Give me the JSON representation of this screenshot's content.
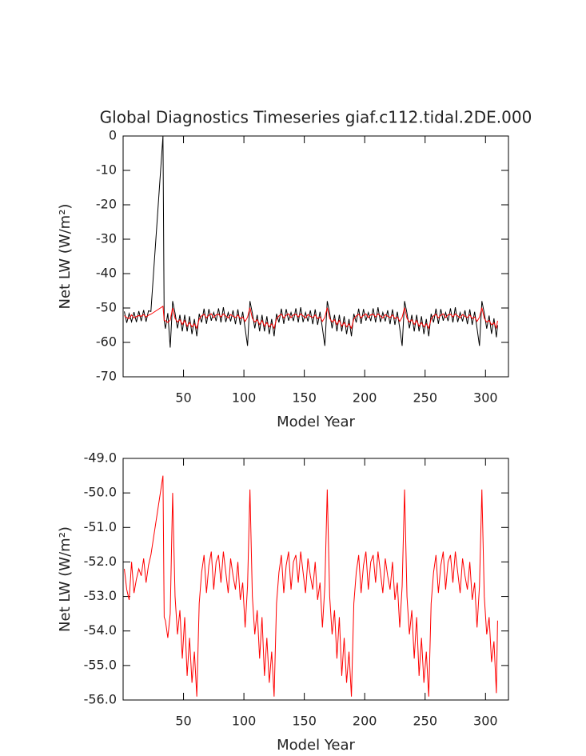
{
  "chart_data": [
    {
      "type": "line",
      "title": "Global Diagnostics Timeseries giaf.c112.tidal.2DE.000",
      "x_label": "Model Year",
      "y_label": "Net LW (W/m²)",
      "xlim": [
        0,
        319
      ],
      "xticks": [
        50,
        100,
        150,
        200,
        250,
        300
      ],
      "ylim": [
        -70,
        0
      ],
      "yticks": [
        -70,
        -60,
        -50,
        -40,
        -30,
        -20,
        -10,
        0
      ],
      "x": [
        1,
        3,
        5,
        7,
        9,
        11,
        13,
        15,
        17,
        19,
        21,
        23,
        33,
        34,
        35,
        37,
        39,
        41,
        43,
        45,
        47,
        49,
        51,
        53,
        55,
        57,
        59,
        61,
        63,
        65,
        67,
        69,
        71,
        73,
        75,
        77,
        79,
        81,
        83,
        85,
        87,
        89,
        91,
        93,
        95,
        97,
        99,
        101,
        103,
        105,
        107,
        109,
        111,
        113,
        115,
        117,
        119,
        121,
        123,
        125,
        127,
        129,
        131,
        133,
        135,
        137,
        139,
        141,
        143,
        145,
        147,
        149,
        151,
        153,
        155,
        157,
        159,
        161,
        163,
        165,
        167,
        169,
        171,
        173,
        175,
        177,
        179,
        181,
        183,
        185,
        187,
        189,
        191,
        193,
        195,
        197,
        199,
        201,
        203,
        205,
        207,
        209,
        211,
        213,
        215,
        217,
        219,
        221,
        223,
        225,
        227,
        229,
        231,
        233,
        235,
        237,
        239,
        241,
        243,
        245,
        247,
        249,
        251,
        253,
        255,
        257,
        259,
        261,
        263,
        265,
        267,
        269,
        271,
        273,
        275,
        277,
        279,
        281,
        283,
        285,
        287,
        289,
        291,
        293,
        295,
        297,
        299,
        301,
        303,
        305,
        307,
        309,
        310
      ],
      "series": [
        {
          "color": "#000000",
          "values": [
            -51.0,
            -54.3,
            -51.6,
            -54.0,
            -51.2,
            -54.1,
            -50.9,
            -53.8,
            -50.6,
            -54.0,
            -50.8,
            -51.0,
            0,
            -53.6,
            -56.0,
            -51.5,
            -61.5,
            -48.0,
            -51.5,
            -55.9,
            -52.0,
            -56.8,
            -52.0,
            -56.8,
            -52.4,
            -57.6,
            -53.2,
            -58.2,
            -51.7,
            -54.2,
            -50.2,
            -54.6,
            -50.3,
            -53.7,
            -51.3,
            -53.8,
            -50.1,
            -54.2,
            -49.8,
            -54.1,
            -51.3,
            -53.9,
            -50.7,
            -54.7,
            -50.4,
            -54.9,
            -51.1,
            -55.9,
            -61.0,
            -48.0,
            -51.5,
            -55.9,
            -52.0,
            -56.8,
            -52.0,
            -56.8,
            -52.4,
            -57.6,
            -53.2,
            -58.2,
            -51.7,
            -54.2,
            -50.2,
            -54.6,
            -50.3,
            -53.7,
            -51.3,
            -53.8,
            -50.1,
            -54.2,
            -49.8,
            -54.1,
            -51.3,
            -53.9,
            -50.7,
            -54.7,
            -50.4,
            -54.9,
            -51.1,
            -55.9,
            -61.0,
            -48.0,
            -51.5,
            -55.9,
            -52.0,
            -56.8,
            -52.0,
            -56.8,
            -52.4,
            -57.6,
            -53.2,
            -58.2,
            -51.7,
            -54.2,
            -50.2,
            -54.6,
            -50.3,
            -53.7,
            -51.3,
            -53.8,
            -50.1,
            -54.2,
            -49.8,
            -54.1,
            -51.3,
            -53.9,
            -50.7,
            -54.7,
            -50.4,
            -54.9,
            -51.1,
            -55.9,
            -61.0,
            -48.0,
            -51.5,
            -55.9,
            -52.0,
            -56.8,
            -52.0,
            -56.8,
            -52.4,
            -57.6,
            -53.2,
            -58.2,
            -51.7,
            -54.2,
            -50.2,
            -54.6,
            -50.3,
            -53.7,
            -51.3,
            -53.8,
            -50.1,
            -54.2,
            -49.8,
            -54.1,
            -51.3,
            -53.9,
            -50.7,
            -54.7,
            -50.4,
            -54.9,
            -51.1,
            -55.9,
            -61.0,
            -48.0,
            -51.5,
            -56.0,
            -52.2,
            -57.5,
            -53.0,
            -58.5,
            -55.0
          ]
        },
        {
          "color": "#ff0000",
          "values": [
            -52.2,
            -52.8,
            -53.1,
            -52.0,
            -52.9,
            -52.5,
            -52.2,
            -52.4,
            -51.9,
            -52.6,
            -52.1,
            -51.8,
            -49.5,
            -53.6,
            -53.7,
            -54.2,
            -53.5,
            -50.0,
            -53.0,
            -54.1,
            -53.4,
            -54.8,
            -53.6,
            -55.3,
            -54.2,
            -55.5,
            -54.6,
            -55.9,
            -53.2,
            -52.3,
            -51.8,
            -52.9,
            -52.1,
            -51.7,
            -52.8,
            -52.0,
            -51.8,
            -52.6,
            -51.7,
            -52.3,
            -52.9,
            -51.9,
            -52.4,
            -52.8,
            -52.0,
            -53.1,
            -52.6,
            -53.9,
            -52.7,
            -49.9,
            -53.0,
            -54.1,
            -53.4,
            -54.8,
            -53.6,
            -55.3,
            -54.2,
            -55.5,
            -54.6,
            -55.9,
            -53.2,
            -52.3,
            -51.8,
            -52.9,
            -52.1,
            -51.7,
            -52.8,
            -52.0,
            -51.8,
            -52.6,
            -51.7,
            -52.3,
            -52.9,
            -51.9,
            -52.4,
            -52.8,
            -52.0,
            -53.1,
            -52.6,
            -53.9,
            -52.7,
            -49.9,
            -53.0,
            -54.1,
            -53.4,
            -54.8,
            -53.6,
            -55.3,
            -54.2,
            -55.5,
            -54.6,
            -55.9,
            -53.2,
            -52.3,
            -51.8,
            -52.9,
            -52.1,
            -51.7,
            -52.8,
            -52.0,
            -51.8,
            -52.6,
            -51.7,
            -52.3,
            -52.9,
            -51.9,
            -52.4,
            -52.8,
            -52.0,
            -53.1,
            -52.6,
            -53.9,
            -52.7,
            -49.9,
            -53.0,
            -54.1,
            -53.4,
            -54.8,
            -53.6,
            -55.3,
            -54.2,
            -55.5,
            -54.6,
            -55.9,
            -53.2,
            -52.3,
            -51.8,
            -52.9,
            -52.1,
            -51.7,
            -52.8,
            -52.0,
            -51.8,
            -52.6,
            -51.7,
            -52.3,
            -52.9,
            -51.9,
            -52.4,
            -52.8,
            -52.0,
            -53.1,
            -52.6,
            -53.9,
            -52.7,
            -49.9,
            -53.0,
            -54.1,
            -53.6,
            -54.9,
            -54.3,
            -55.8,
            -53.7
          ]
        }
      ]
    },
    {
      "type": "line",
      "x_label": "Model Year",
      "y_label": "Net LW (W/m²)",
      "xlim": [
        0,
        319
      ],
      "xticks": [
        50,
        100,
        150,
        200,
        250,
        300
      ],
      "ylim": [
        -56,
        -49
      ],
      "yticks": [
        {
          "value": -56,
          "label": "-56.0"
        },
        {
          "value": -55,
          "label": "-55.0"
        },
        {
          "value": -54,
          "label": "-54.0"
        },
        {
          "value": -53,
          "label": "-53.0"
        },
        {
          "value": -52,
          "label": "-52.0"
        },
        {
          "value": -51,
          "label": "-51.0"
        },
        {
          "value": -50,
          "label": "-50.0"
        },
        {
          "value": -49,
          "label": "-49.0"
        }
      ],
      "x": [
        1,
        3,
        5,
        7,
        9,
        11,
        13,
        15,
        17,
        19,
        21,
        23,
        33,
        34,
        35,
        37,
        39,
        41,
        43,
        45,
        47,
        49,
        51,
        53,
        55,
        57,
        59,
        61,
        63,
        65,
        67,
        69,
        71,
        73,
        75,
        77,
        79,
        81,
        83,
        85,
        87,
        89,
        91,
        93,
        95,
        97,
        99,
        101,
        103,
        105,
        107,
        109,
        111,
        113,
        115,
        117,
        119,
        121,
        123,
        125,
        127,
        129,
        131,
        133,
        135,
        137,
        139,
        141,
        143,
        145,
        147,
        149,
        151,
        153,
        155,
        157,
        159,
        161,
        163,
        165,
        167,
        169,
        171,
        173,
        175,
        177,
        179,
        181,
        183,
        185,
        187,
        189,
        191,
        193,
        195,
        197,
        199,
        201,
        203,
        205,
        207,
        209,
        211,
        213,
        215,
        217,
        219,
        221,
        223,
        225,
        227,
        229,
        231,
        233,
        235,
        237,
        239,
        241,
        243,
        245,
        247,
        249,
        251,
        253,
        255,
        257,
        259,
        261,
        263,
        265,
        267,
        269,
        271,
        273,
        275,
        277,
        279,
        281,
        283,
        285,
        287,
        289,
        291,
        293,
        295,
        297,
        299,
        301,
        303,
        305,
        307,
        309,
        310
      ],
      "series": [
        {
          "color": "#ff0000",
          "values": [
            -52.2,
            -52.8,
            -53.1,
            -52.0,
            -52.9,
            -52.5,
            -52.2,
            -52.4,
            -51.9,
            -52.6,
            -52.1,
            -51.8,
            -49.5,
            -53.6,
            -53.7,
            -54.2,
            -53.5,
            -50.0,
            -53.0,
            -54.1,
            -53.4,
            -54.8,
            -53.6,
            -55.3,
            -54.2,
            -55.5,
            -54.6,
            -55.9,
            -53.2,
            -52.3,
            -51.8,
            -52.9,
            -52.1,
            -51.7,
            -52.8,
            -52.0,
            -51.8,
            -52.6,
            -51.7,
            -52.3,
            -52.9,
            -51.9,
            -52.4,
            -52.8,
            -52.0,
            -53.1,
            -52.6,
            -53.9,
            -52.7,
            -49.9,
            -53.0,
            -54.1,
            -53.4,
            -54.8,
            -53.6,
            -55.3,
            -54.2,
            -55.5,
            -54.6,
            -55.9,
            -53.2,
            -52.3,
            -51.8,
            -52.9,
            -52.1,
            -51.7,
            -52.8,
            -52.0,
            -51.8,
            -52.6,
            -51.7,
            -52.3,
            -52.9,
            -51.9,
            -52.4,
            -52.8,
            -52.0,
            -53.1,
            -52.6,
            -53.9,
            -52.7,
            -49.9,
            -53.0,
            -54.1,
            -53.4,
            -54.8,
            -53.6,
            -55.3,
            -54.2,
            -55.5,
            -54.6,
            -55.9,
            -53.2,
            -52.3,
            -51.8,
            -52.9,
            -52.1,
            -51.7,
            -52.8,
            -52.0,
            -51.8,
            -52.6,
            -51.7,
            -52.3,
            -52.9,
            -51.9,
            -52.4,
            -52.8,
            -52.0,
            -53.1,
            -52.6,
            -53.9,
            -52.7,
            -49.9,
            -53.0,
            -54.1,
            -53.4,
            -54.8,
            -53.6,
            -55.3,
            -54.2,
            -55.5,
            -54.6,
            -55.9,
            -53.2,
            -52.3,
            -51.8,
            -52.9,
            -52.1,
            -51.7,
            -52.8,
            -52.0,
            -51.8,
            -52.6,
            -51.7,
            -52.3,
            -52.9,
            -51.9,
            -52.4,
            -52.8,
            -52.0,
            -53.1,
            -52.6,
            -53.9,
            -52.7,
            -49.9,
            -53.0,
            -54.1,
            -53.6,
            -54.9,
            -54.3,
            -55.8,
            -53.7
          ]
        }
      ]
    }
  ]
}
